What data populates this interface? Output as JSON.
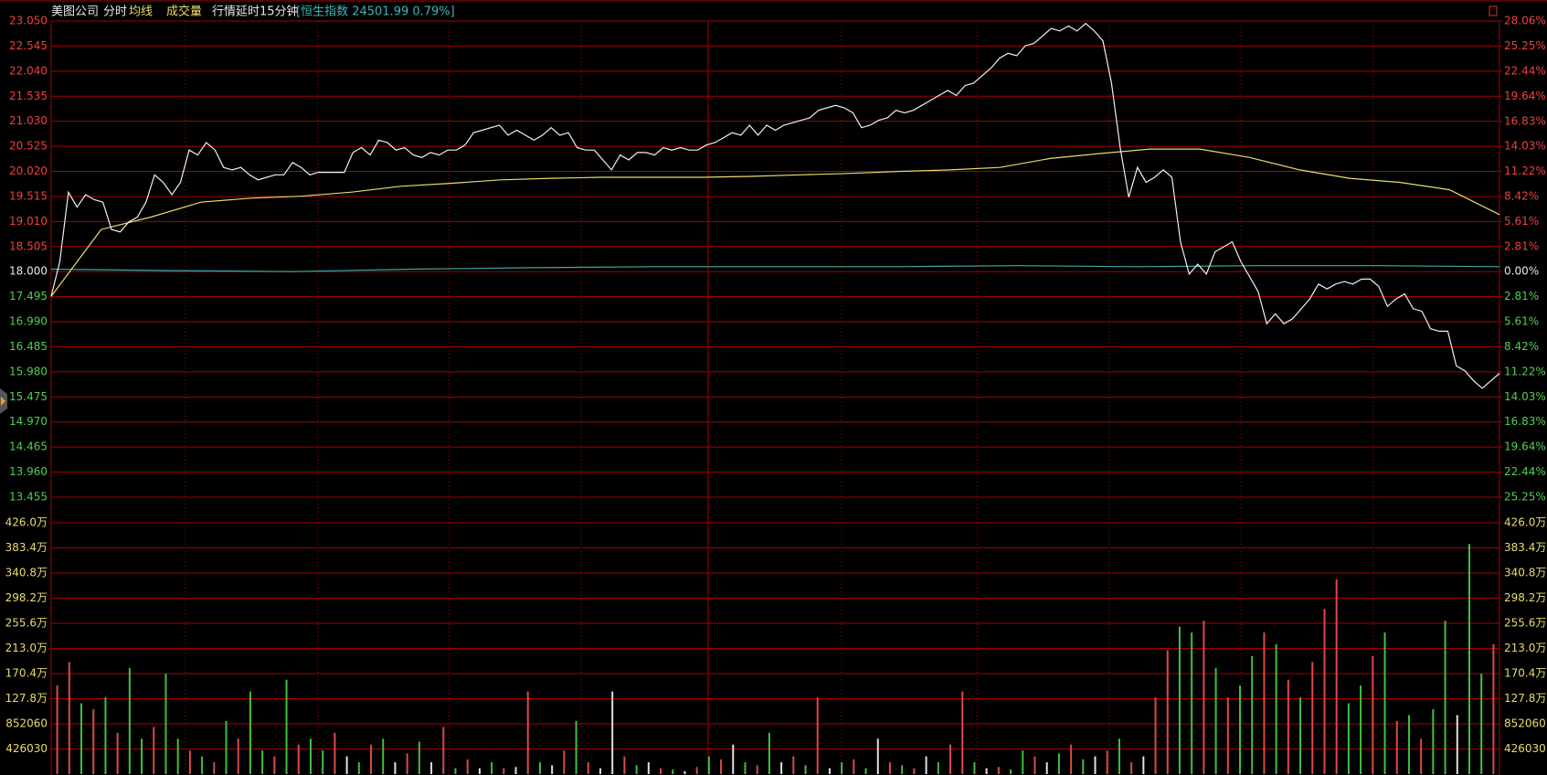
{
  "header": {
    "stock": "美图公司",
    "tabs": [
      "分时",
      "均线",
      "成交量"
    ],
    "notice": "行情延时15分钟",
    "index_info": "[恒生指数 24501.99 0.79%]"
  },
  "chart_data": [
    {
      "type": "line",
      "ylim": [
        13.455,
        23.05
      ],
      "yticks": [
        {
          "value": 23.05,
          "label": "23.050"
        },
        22.545,
        {
          "value": 22.04,
          "label": "22.040"
        },
        21.535,
        {
          "value": 21.03,
          "label": "21.030"
        },
        20.525,
        {
          "value": 20.02,
          "label": "20.020"
        },
        19.515,
        {
          "value": 19.01,
          "label": "19.010"
        },
        18.505,
        {
          "value": 18,
          "label": "18.000"
        },
        17.495,
        {
          "value": 16.99,
          "label": "16.990"
        },
        16.485,
        {
          "value": 15.98,
          "label": "15.980"
        },
        15.475,
        {
          "value": 14.97,
          "label": "14.970"
        },
        14.465,
        {
          "value": 13.96,
          "label": "13.960"
        },
        13.455
      ],
      "y2lim": [
        -25.25,
        28.06
      ],
      "y2ticks": [
        {
          "value": 28.06,
          "label": "28.06%"
        },
        {
          "value": 25.25,
          "label": "25.25%"
        },
        {
          "value": 22.44,
          "label": "22.44%"
        },
        {
          "value": 19.64,
          "label": "19.64%"
        },
        {
          "value": 16.83,
          "label": "16.83%"
        },
        {
          "value": 14.03,
          "label": "14.03%"
        },
        {
          "value": 11.22,
          "label": "11.22%"
        },
        {
          "value": 8.42,
          "label": "8.42%"
        },
        {
          "value": 5.61,
          "label": "5.61%"
        },
        {
          "value": 2.81,
          "label": "2.81%"
        },
        {
          "value": 0,
          "label": "0.00%"
        },
        {
          "value": -2.81,
          "label": "2.81%"
        },
        {
          "value": -5.61,
          "label": "5.61%"
        },
        {
          "value": -8.42,
          "label": "8.42%"
        },
        {
          "value": -11.22,
          "label": "11.22%"
        },
        {
          "value": -14.03,
          "label": "14.03%"
        },
        {
          "value": -16.83,
          "label": "16.83%"
        },
        {
          "value": -19.64,
          "label": "19.64%"
        },
        {
          "value": -22.44,
          "label": "22.44%"
        },
        {
          "value": -25.25,
          "label": "25.25%"
        }
      ],
      "grid": true,
      "series": [
        {
          "name": "分时",
          "color": "#f0f0f0",
          "values": [
            17.5,
            18.2,
            19.6,
            19.3,
            19.55,
            19.45,
            19.4,
            18.85,
            18.8,
            19.0,
            19.1,
            19.4,
            19.95,
            19.8,
            19.55,
            19.8,
            20.45,
            20.35,
            20.6,
            20.45,
            20.1,
            20.05,
            20.1,
            19.95,
            19.85,
            19.9,
            19.95,
            19.95,
            20.2,
            20.1,
            19.95,
            20.0,
            20.0,
            20.0,
            20.0,
            20.4,
            20.5,
            20.35,
            20.65,
            20.6,
            20.45,
            20.5,
            20.35,
            20.3,
            20.4,
            20.35,
            20.45,
            20.45,
            20.55,
            20.8,
            20.85,
            20.9,
            20.95,
            20.75,
            20.85,
            20.75,
            20.65,
            20.75,
            20.9,
            20.75,
            20.8,
            20.5,
            20.45,
            20.45,
            20.25,
            20.05,
            20.35,
            20.25,
            20.4,
            20.4,
            20.35,
            20.5,
            20.45,
            20.5,
            20.45,
            20.45,
            20.55,
            20.6,
            20.7,
            20.8,
            20.75,
            20.95,
            20.75,
            20.95,
            20.85,
            20.95,
            21.0,
            21.05,
            21.1,
            21.25,
            21.3,
            21.35,
            21.3,
            21.2,
            20.9,
            20.95,
            21.05,
            21.1,
            21.25,
            21.2,
            21.25,
            21.35,
            21.45,
            21.55,
            21.65,
            21.55,
            21.75,
            21.8,
            21.95,
            22.1,
            22.3,
            22.4,
            22.35,
            22.55,
            22.6,
            22.75,
            22.9,
            22.85,
            22.95,
            22.85,
            23.0,
            22.85,
            22.65,
            21.8,
            20.5,
            19.5,
            20.1,
            19.8,
            19.9,
            20.05,
            19.9,
            18.6,
            17.95,
            18.15,
            17.95,
            18.4,
            18.5,
            18.6,
            18.2,
            17.9,
            17.6,
            16.95,
            17.15,
            16.95,
            17.05,
            17.25,
            17.45,
            17.75,
            17.65,
            17.75,
            17.8,
            17.75,
            17.85,
            17.85,
            17.7,
            17.3,
            17.45,
            17.55,
            17.25,
            17.2,
            16.85,
            16.8,
            16.8,
            16.1,
            16.0,
            15.8,
            15.65,
            15.8,
            15.95
          ]
        },
        {
          "name": "均线",
          "color": "#e8dc6a",
          "values": [
            17.5,
            18.85,
            19.1,
            19.4,
            19.48,
            19.52,
            19.6,
            19.72,
            19.78,
            19.85,
            19.88,
            19.9,
            19.9,
            19.9,
            19.92,
            19.95,
            19.98,
            20.02,
            20.05,
            20.1,
            20.28,
            20.38,
            20.47,
            20.47,
            20.3,
            20.05,
            19.88,
            19.8,
            19.65,
            19.15
          ]
        },
        {
          "name": "恒生指数",
          "color": "#3fa7a7",
          "values": [
            18.05,
            18.02,
            18.0,
            18.05,
            18.08,
            18.1,
            18.1,
            18.1,
            18.12,
            18.1,
            18.12,
            18.12,
            18.1
          ]
        }
      ]
    },
    {
      "type": "bar",
      "ylim": [
        0,
        4260300
      ],
      "yticks": [
        {
          "value": 4260300,
          "label": "426.0万"
        },
        {
          "value": 3834270,
          "label": "383.4万"
        },
        {
          "value": 3408240,
          "label": "340.8万"
        },
        {
          "value": 2982210,
          "label": "298.2万"
        },
        {
          "value": 2556180,
          "label": "255.6万"
        },
        {
          "value": 2130150,
          "label": "213.0万"
        },
        {
          "value": 1704120,
          "label": "170.4万"
        },
        {
          "value": 1278090,
          "label": "127.8万"
        },
        852060,
        426030
      ],
      "grid": true,
      "values": [
        1500000,
        1900000,
        1200000,
        1100000,
        1300000,
        700000,
        1800000,
        600000,
        800000,
        1700000,
        600000,
        400000,
        300000,
        200000,
        900000,
        600000,
        1400000,
        400000,
        300000,
        1600000,
        500000,
        600000,
        400000,
        700000,
        300000,
        200000,
        500000,
        600000,
        200000,
        350000,
        550000,
        200000,
        800000,
        100000,
        250000,
        100000,
        200000,
        100000,
        120000,
        1400000,
        200000,
        150000,
        400000,
        900000,
        200000,
        100000,
        1400000,
        300000,
        150000,
        200000,
        100000,
        80000,
        50000,
        120000,
        300000,
        250000,
        500000,
        200000,
        150000,
        700000,
        200000,
        300000,
        150000,
        1300000,
        100000,
        200000,
        250000,
        100000,
        600000,
        200000,
        150000,
        100000,
        300000,
        200000,
        500000,
        1400000,
        200000,
        100000,
        120000,
        80000,
        400000,
        300000,
        200000,
        350000,
        500000,
        250000,
        300000,
        400000,
        600000,
        200000,
        300000,
        1300000,
        2100000,
        2500000,
        2400000,
        2600000,
        1800000,
        1300000,
        1500000,
        2000000,
        2400000,
        2200000,
        1600000,
        1300000,
        1900000,
        2800000,
        3300000,
        1200000,
        1500000,
        2000000,
        2400000,
        900000,
        1000000,
        600000,
        1100000,
        2600000,
        1000000,
        3900000,
        1700000,
        2200000
      ],
      "colors": [
        "#e04848",
        "#e04848",
        "#40c040",
        "#e04848",
        "#40c040",
        "#e04848",
        "#40c040",
        "#40c040",
        "#e04848",
        "#40c040",
        "#40c040",
        "#e04848",
        "#40c040",
        "#e04848",
        "#40c040",
        "#e04848",
        "#40c040",
        "#40c040",
        "#e04848",
        "#40c040",
        "#e04848",
        "#40c040",
        "#40c040",
        "#e04848",
        "#e0e0e0",
        "#40c040",
        "#e04848",
        "#40c040",
        "#e0e0e0",
        "#e04848",
        "#40c040",
        "#e0e0e0",
        "#e04848",
        "#40c040",
        "#e04848",
        "#e0e0e0",
        "#40c040",
        "#e04848",
        "#e0e0e0",
        "#e04848",
        "#40c040",
        "#e0e0e0",
        "#e04848",
        "#40c040",
        "#e04848",
        "#e0e0e0",
        "#e0e0e0",
        "#e04848",
        "#40c040",
        "#e0e0e0",
        "#e04848",
        "#40c040",
        "#e0e0e0",
        "#e04848",
        "#40c040",
        "#e04848",
        "#e0e0e0",
        "#40c040",
        "#e04848",
        "#40c040",
        "#e0e0e0",
        "#e04848",
        "#40c040",
        "#e04848",
        "#e0e0e0",
        "#40c040",
        "#e04848",
        "#40c040",
        "#e0e0e0",
        "#e04848",
        "#40c040",
        "#e04848",
        "#e0e0e0",
        "#40c040",
        "#e04848",
        "#e04848",
        "#40c040",
        "#e0e0e0",
        "#e04848",
        "#40c040",
        "#40c040",
        "#e04848",
        "#e0e0e0",
        "#40c040",
        "#e04848",
        "#40c040",
        "#e0e0e0",
        "#e04848",
        "#40c040",
        "#e04848",
        "#e0e0e0",
        "#e04848",
        "#e04848",
        "#40c040",
        "#40c040",
        "#e04848",
        "#40c040",
        "#e04848",
        "#40c040",
        "#40c040",
        "#e04848",
        "#40c040",
        "#e04848",
        "#40c040",
        "#e04848",
        "#e04848",
        "#e04848",
        "#40c040",
        "#40c040",
        "#e04848",
        "#40c040",
        "#e04848",
        "#40c040",
        "#e04848",
        "#40c040",
        "#40c040",
        "#e0e0e0",
        "#40c040",
        "#40c040",
        "#e04848"
      ]
    }
  ]
}
